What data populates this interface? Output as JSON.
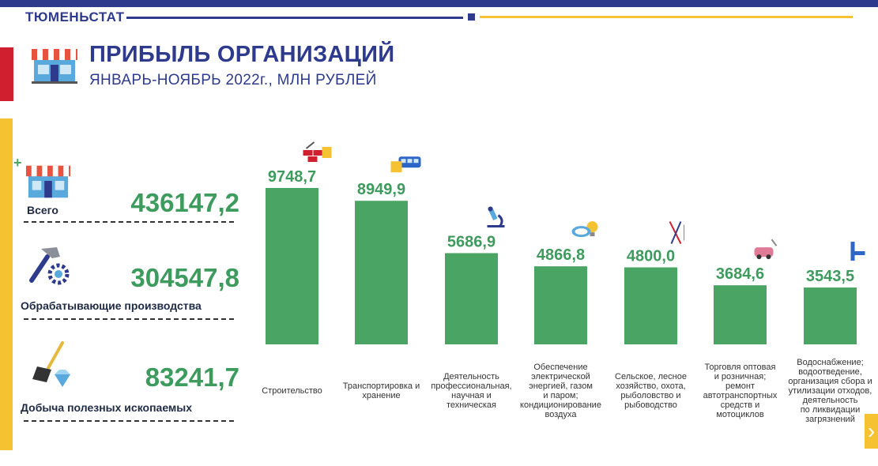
{
  "header": {
    "brand": "ТЮМЕНЬСТАТ"
  },
  "colors": {
    "brand_blue": "#2e3a8c",
    "accent_red": "#d0202f",
    "accent_yellow": "#f5c232",
    "bar_green": "#4aa564",
    "value_green": "#3d9b5e"
  },
  "title": "ПРИБЫЛЬ ОРГАНИЗАЦИЙ",
  "subtitle": "ЯНВАРЬ-НОЯБРЬ 2022г., МЛН РУБЛЕЙ",
  "summary": [
    {
      "label": "Всего",
      "value": "436147,2",
      "icon": "shop-icon"
    },
    {
      "label": "Обрабатывающие производства",
      "value": "304547,8",
      "icon": "hammer-gear-icon"
    },
    {
      "label": "Добыча полезных ископаемых",
      "value": "83241,7",
      "icon": "shovel-diamond-icon"
    }
  ],
  "chart_data": {
    "type": "bar",
    "categories": [
      "Строительство",
      "Транспортировка и хранение",
      "Деятельность профессиональная, научная и техническая",
      "Обеспечение электрической энергией, газом и паром; кондиционирование воздуха",
      "Сельское, лесное хозяйство, охота, рыболовство и рыбоводство",
      "Торговля оптовая и розничная; ремонт автотранспортных средств и мотоциклов",
      "Водоснабжение; водоотведение, организация сбора и утилизации отходов, деятельность по ликвидации загрязнений"
    ],
    "category_lines": [
      [
        "Строительство"
      ],
      [
        "Транспортировка и",
        "хранение"
      ],
      [
        "Деятельность",
        "профессиональная,",
        "научная и",
        "техническая"
      ],
      [
        "Обеспечение",
        "электрической",
        "энергией, газом",
        "и паром;",
        "кондиционирование",
        "воздуха"
      ],
      [
        "Сельское, лесное",
        "хозяйство, охота,",
        "рыболовство и",
        "рыбоводство"
      ],
      [
        "Торговля оптовая",
        "и розничная;",
        "ремонт",
        "автотранспортных",
        "средств и",
        "мотоциклов"
      ],
      [
        "Водоснабжение;",
        "водоотведение,",
        "организация сбора и",
        "утилизации отходов,",
        "деятельность",
        "по ликвидации",
        "загрязнений"
      ]
    ],
    "values": [
      9748.7,
      8949.9,
      5686.9,
      4866.8,
      4800.0,
      3684.6,
      3543.5
    ],
    "value_labels": [
      "9748,7",
      "8949,9",
      "5686,9",
      "4866,8",
      "4800,0",
      "3684,6",
      "3543,5"
    ],
    "icons": [
      "bricks-icon",
      "bus-icon",
      "microscope-icon",
      "lightbulb-icon",
      "fishing-rod-icon",
      "car-repair-icon",
      "water-tap-icon"
    ],
    "ylim": [
      0,
      9748.7
    ]
  }
}
